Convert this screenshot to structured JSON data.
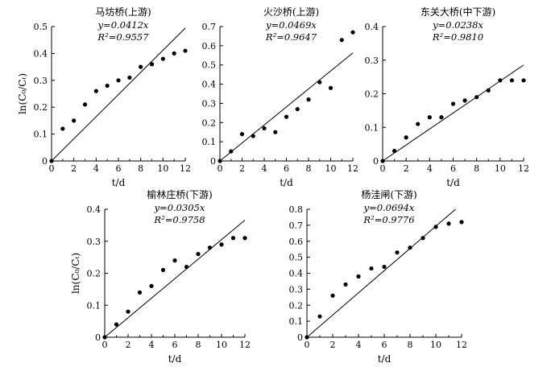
{
  "chart_data": [
    {
      "type": "scatter",
      "title": "马坊桥(上游)",
      "equation": "y=0.0412x",
      "r2": "R²=0.9557",
      "xlabel": "t/d",
      "ylabel": "ln(C₀/Cₜ)",
      "xlim": [
        0,
        12
      ],
      "ylim": [
        0,
        0.5
      ],
      "xticks": [
        "0",
        "2",
        "4",
        "6",
        "8",
        "10",
        "12"
      ],
      "yticks": [
        "0",
        "0.1",
        "0.2",
        "0.3",
        "0.4",
        "0.5"
      ],
      "x": [
        0,
        1,
        2,
        3,
        4,
        5,
        6,
        7,
        8,
        9,
        10,
        11,
        12
      ],
      "values": [
        0,
        0.12,
        0.15,
        0.21,
        0.26,
        0.28,
        0.3,
        0.31,
        0.35,
        0.36,
        0.38,
        0.4,
        0.41
      ],
      "fit_slope": 0.0412
    },
    {
      "type": "scatter",
      "title": "火沙桥(上游)",
      "equation": "y=0.0469x",
      "r2": "R²=0.9647",
      "xlabel": "t/d",
      "ylabel": "",
      "xlim": [
        0,
        12
      ],
      "ylim": [
        0,
        0.7
      ],
      "xticks": [
        "0",
        "2",
        "4",
        "6",
        "8",
        "10",
        "12"
      ],
      "yticks": [
        "0",
        "0.1",
        "0.2",
        "0.3",
        "0.4",
        "0.5",
        "0.6",
        "0.7"
      ],
      "x": [
        0,
        1,
        2,
        3,
        4,
        5,
        6,
        7,
        8,
        9,
        10,
        11,
        12
      ],
      "values": [
        0,
        0.05,
        0.14,
        0.13,
        0.17,
        0.15,
        0.23,
        0.27,
        0.32,
        0.41,
        0.38,
        0.63,
        0.67
      ],
      "fit_slope": 0.0469
    },
    {
      "type": "scatter",
      "title": "东关大桥(中下游)",
      "equation": "y=0.0238x",
      "r2": "R²=0.9810",
      "xlabel": "t/d",
      "ylabel": "",
      "xlim": [
        0,
        12
      ],
      "ylim": [
        0,
        0.4
      ],
      "xticks": [
        "0",
        "2",
        "4",
        "6",
        "8",
        "10",
        "12"
      ],
      "yticks": [
        "0",
        "0.1",
        "0.2",
        "0.3",
        "0.4"
      ],
      "x": [
        0,
        1,
        2,
        3,
        4,
        5,
        6,
        7,
        8,
        9,
        10,
        11,
        12
      ],
      "values": [
        0,
        0.03,
        0.07,
        0.11,
        0.13,
        0.13,
        0.17,
        0.18,
        0.19,
        0.21,
        0.24,
        0.24,
        0.24
      ],
      "fit_slope": 0.0238
    },
    {
      "type": "scatter",
      "title": "榆林庄桥(下游)",
      "equation": "y=0.0305x",
      "r2": "R²=0.9758",
      "xlabel": "t/d",
      "ylabel": "ln(C₀/Cₜ)",
      "xlim": [
        0,
        12
      ],
      "ylim": [
        0,
        0.4
      ],
      "xticks": [
        "0",
        "2",
        "4",
        "6",
        "8",
        "10",
        "12"
      ],
      "yticks": [
        "0",
        "0.1",
        "0.2",
        "0.3",
        "0.4"
      ],
      "x": [
        0,
        1,
        2,
        3,
        4,
        5,
        6,
        7,
        8,
        9,
        10,
        11,
        12
      ],
      "values": [
        0,
        0.04,
        0.08,
        0.14,
        0.16,
        0.21,
        0.24,
        0.22,
        0.26,
        0.28,
        0.29,
        0.31,
        0.31
      ],
      "fit_slope": 0.0305
    },
    {
      "type": "scatter",
      "title": "杨洼闸(下游)",
      "equation": "y=0.0694x",
      "r2": "R²=0.9776",
      "xlabel": "t/d",
      "ylabel": "",
      "xlim": [
        0,
        12
      ],
      "ylim": [
        0,
        0.8
      ],
      "xticks": [
        "0",
        "2",
        "4",
        "6",
        "8",
        "10",
        "12"
      ],
      "yticks": [
        "0",
        "0.1",
        "0.2",
        "0.3",
        "0.4",
        "0.5",
        "0.6",
        "0.7",
        "0.8"
      ],
      "x": [
        0,
        1,
        2,
        3,
        4,
        5,
        6,
        7,
        8,
        9,
        10,
        11,
        12
      ],
      "values": [
        0,
        0.13,
        0.26,
        0.33,
        0.38,
        0.43,
        0.44,
        0.53,
        0.56,
        0.62,
        0.69,
        0.71,
        0.72
      ],
      "fit_slope": 0.0694
    }
  ]
}
